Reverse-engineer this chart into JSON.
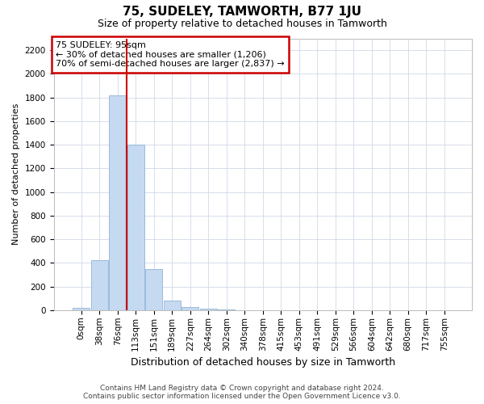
{
  "title": "75, SUDELEY, TAMWORTH, B77 1JU",
  "subtitle": "Size of property relative to detached houses in Tamworth",
  "xlabel": "Distribution of detached houses by size in Tamworth",
  "ylabel": "Number of detached properties",
  "bin_labels": [
    "0sqm",
    "38sqm",
    "76sqm",
    "113sqm",
    "151sqm",
    "189sqm",
    "227sqm",
    "264sqm",
    "302sqm",
    "340sqm",
    "378sqm",
    "415sqm",
    "453sqm",
    "491sqm",
    "529sqm",
    "566sqm",
    "604sqm",
    "642sqm",
    "680sqm",
    "717sqm",
    "755sqm"
  ],
  "bar_values": [
    20,
    420,
    1820,
    1400,
    350,
    80,
    30,
    15,
    5,
    0,
    0,
    0,
    0,
    0,
    0,
    0,
    0,
    0,
    0,
    0,
    0
  ],
  "bar_color": "#c5d9f0",
  "bar_edgecolor": "#8eb4d8",
  "ylim": [
    0,
    2300
  ],
  "yticks": [
    0,
    200,
    400,
    600,
    800,
    1000,
    1200,
    1400,
    1600,
    1800,
    2000,
    2200
  ],
  "property_line_x": 2.51,
  "property_label": "75 SUDELEY: 95sqm",
  "annotation_line1": "← 30% of detached houses are smaller (1,206)",
  "annotation_line2": "70% of semi-detached houses are larger (2,837) →",
  "annotation_box_color": "#ffffff",
  "annotation_box_edgecolor": "#cc0000",
  "line_color": "#cc0000",
  "footer1": "Contains HM Land Registry data © Crown copyright and database right 2024.",
  "footer2": "Contains public sector information licensed under the Open Government Licence v3.0.",
  "bg_color": "#ffffff",
  "grid_color": "#d0d8e8",
  "title_fontsize": 11,
  "subtitle_fontsize": 9,
  "ylabel_fontsize": 8,
  "xlabel_fontsize": 9,
  "tick_fontsize": 7.5,
  "annotation_fontsize": 8,
  "footer_fontsize": 6.5
}
